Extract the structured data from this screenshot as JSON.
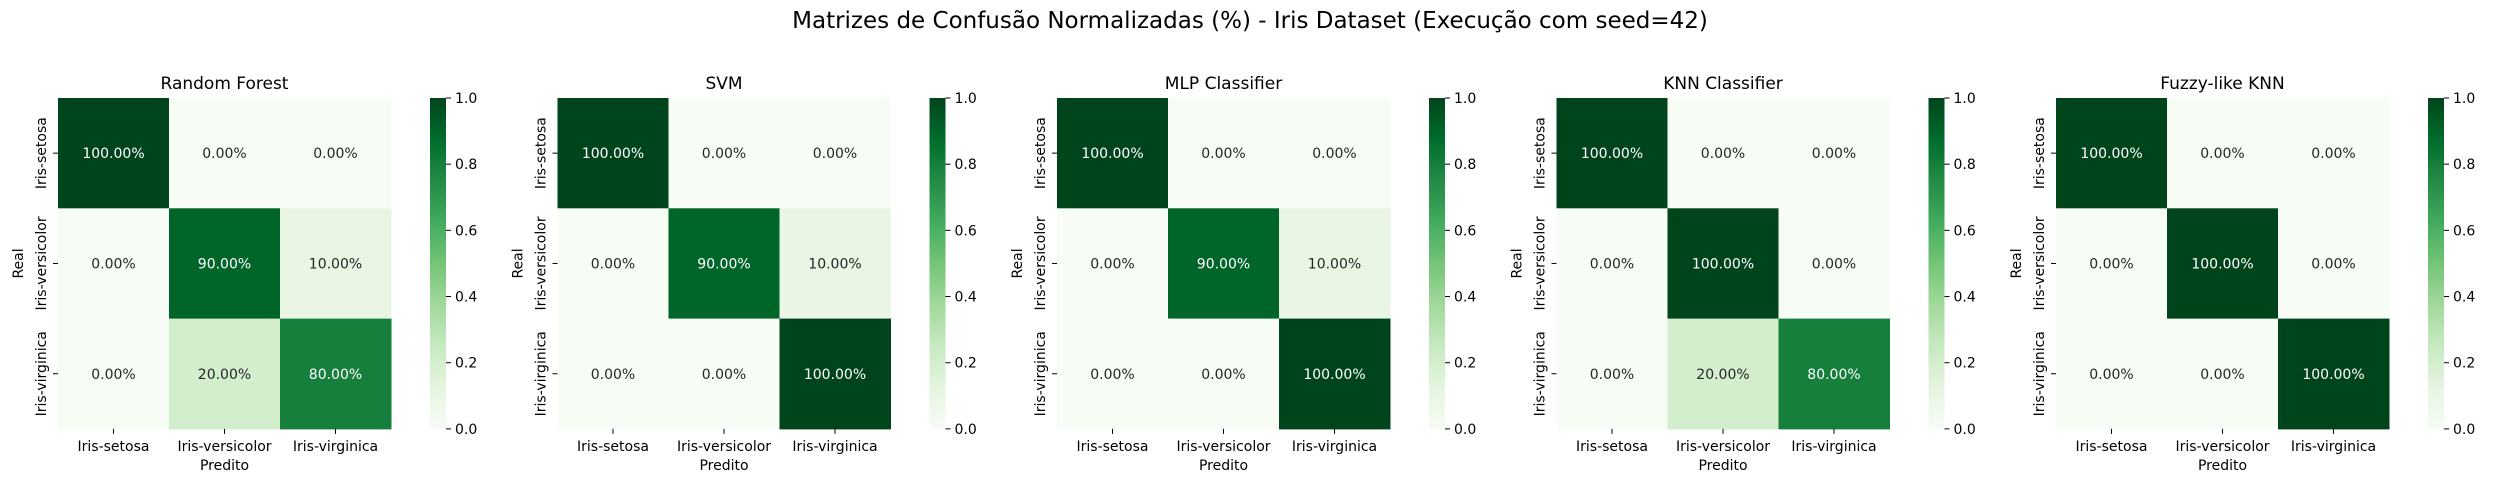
{
  "figure": {
    "suptitle": "Matrizes de Confusão Normalizadas (%) - Iris Dataset (Execução com seed=42)"
  },
  "chart_data": [
    {
      "type": "heatmap",
      "title": "Random Forest",
      "xlabel": "Predito",
      "ylabel": "Real",
      "x_categories": [
        "Iris-setosa",
        "Iris-versicolor",
        "Iris-virginica"
      ],
      "y_categories": [
        "Iris-setosa",
        "Iris-versicolor",
        "Iris-virginica"
      ],
      "values": [
        [
          1.0,
          0.0,
          0.0
        ],
        [
          0.0,
          0.9,
          0.1
        ],
        [
          0.0,
          0.2,
          0.8
        ]
      ],
      "annotations": [
        [
          "100.00%",
          "0.00%",
          "0.00%"
        ],
        [
          "0.00%",
          "90.00%",
          "10.00%"
        ],
        [
          "0.00%",
          "20.00%",
          "80.00%"
        ]
      ],
      "colormap": "Greens",
      "vmin": 0.0,
      "vmax": 1.0,
      "colorbar_ticks": [
        "0.0",
        "0.2",
        "0.4",
        "0.6",
        "0.8",
        "1.0"
      ]
    },
    {
      "type": "heatmap",
      "title": "SVM",
      "xlabel": "Predito",
      "ylabel": "Real",
      "x_categories": [
        "Iris-setosa",
        "Iris-versicolor",
        "Iris-virginica"
      ],
      "y_categories": [
        "Iris-setosa",
        "Iris-versicolor",
        "Iris-virginica"
      ],
      "values": [
        [
          1.0,
          0.0,
          0.0
        ],
        [
          0.0,
          0.9,
          0.1
        ],
        [
          0.0,
          0.0,
          1.0
        ]
      ],
      "annotations": [
        [
          "100.00%",
          "0.00%",
          "0.00%"
        ],
        [
          "0.00%",
          "90.00%",
          "10.00%"
        ],
        [
          "0.00%",
          "0.00%",
          "100.00%"
        ]
      ],
      "colormap": "Greens",
      "vmin": 0.0,
      "vmax": 1.0,
      "colorbar_ticks": [
        "0.0",
        "0.2",
        "0.4",
        "0.6",
        "0.8",
        "1.0"
      ]
    },
    {
      "type": "heatmap",
      "title": "MLP Classifier",
      "xlabel": "Predito",
      "ylabel": "Real",
      "x_categories": [
        "Iris-setosa",
        "Iris-versicolor",
        "Iris-virginica"
      ],
      "y_categories": [
        "Iris-setosa",
        "Iris-versicolor",
        "Iris-virginica"
      ],
      "values": [
        [
          1.0,
          0.0,
          0.0
        ],
        [
          0.0,
          0.9,
          0.1
        ],
        [
          0.0,
          0.0,
          1.0
        ]
      ],
      "annotations": [
        [
          "100.00%",
          "0.00%",
          "0.00%"
        ],
        [
          "0.00%",
          "90.00%",
          "10.00%"
        ],
        [
          "0.00%",
          "0.00%",
          "100.00%"
        ]
      ],
      "colormap": "Greens",
      "vmin": 0.0,
      "vmax": 1.0,
      "colorbar_ticks": [
        "0.0",
        "0.2",
        "0.4",
        "0.6",
        "0.8",
        "1.0"
      ]
    },
    {
      "type": "heatmap",
      "title": "KNN Classifier",
      "xlabel": "Predito",
      "ylabel": "Real",
      "x_categories": [
        "Iris-setosa",
        "Iris-versicolor",
        "Iris-virginica"
      ],
      "y_categories": [
        "Iris-setosa",
        "Iris-versicolor",
        "Iris-virginica"
      ],
      "values": [
        [
          1.0,
          0.0,
          0.0
        ],
        [
          0.0,
          1.0,
          0.0
        ],
        [
          0.0,
          0.2,
          0.8
        ]
      ],
      "annotations": [
        [
          "100.00%",
          "0.00%",
          "0.00%"
        ],
        [
          "0.00%",
          "100.00%",
          "0.00%"
        ],
        [
          "0.00%",
          "20.00%",
          "80.00%"
        ]
      ],
      "colormap": "Greens",
      "vmin": 0.0,
      "vmax": 1.0,
      "colorbar_ticks": [
        "0.0",
        "0.2",
        "0.4",
        "0.6",
        "0.8",
        "1.0"
      ]
    },
    {
      "type": "heatmap",
      "title": "Fuzzy-like KNN",
      "xlabel": "Predito",
      "ylabel": "Real",
      "x_categories": [
        "Iris-setosa",
        "Iris-versicolor",
        "Iris-virginica"
      ],
      "y_categories": [
        "Iris-setosa",
        "Iris-versicolor",
        "Iris-virginica"
      ],
      "values": [
        [
          1.0,
          0.0,
          0.0
        ],
        [
          0.0,
          1.0,
          0.0
        ],
        [
          0.0,
          0.0,
          1.0
        ]
      ],
      "annotations": [
        [
          "100.00%",
          "0.00%",
          "0.00%"
        ],
        [
          "0.00%",
          "100.00%",
          "0.00%"
        ],
        [
          "0.00%",
          "0.00%",
          "100.00%"
        ]
      ],
      "colormap": "Greens",
      "vmin": 0.0,
      "vmax": 1.0,
      "colorbar_ticks": [
        "0.0",
        "0.2",
        "0.4",
        "0.6",
        "0.8",
        "1.0"
      ]
    }
  ]
}
